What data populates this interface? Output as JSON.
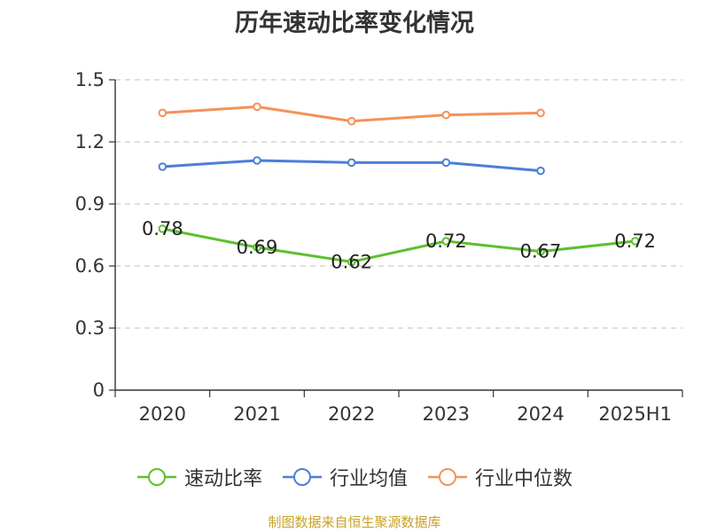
{
  "chart_data": {
    "type": "line",
    "title": "历年速动比率变化情况",
    "categories": [
      "2020",
      "2021",
      "2022",
      "2023",
      "2024",
      "2025H1"
    ],
    "ylim": [
      0,
      1.5
    ],
    "yticks": [
      "0",
      "0.3",
      "0.6",
      "0.9",
      "1.2",
      "1.5"
    ],
    "ytick_values": [
      0,
      0.3,
      0.6,
      0.9,
      1.2,
      1.5
    ],
    "grid": true,
    "legend_position": "bottom",
    "series": [
      {
        "name": "速动比率",
        "color": "#5cc02f",
        "values": [
          0.78,
          0.69,
          0.62,
          0.72,
          0.67,
          0.72
        ],
        "labels": [
          "0.78",
          "0.69",
          "0.62",
          "0.72",
          "0.67",
          "0.72"
        ]
      },
      {
        "name": "行业均值",
        "color": "#4a7fd8",
        "values": [
          1.08,
          1.11,
          1.1,
          1.1,
          1.06,
          null
        ]
      },
      {
        "name": "行业中位数",
        "color": "#f5915a",
        "values": [
          1.34,
          1.37,
          1.3,
          1.33,
          1.34,
          null
        ]
      }
    ]
  },
  "source": "制图数据来自恒生聚源数据库"
}
